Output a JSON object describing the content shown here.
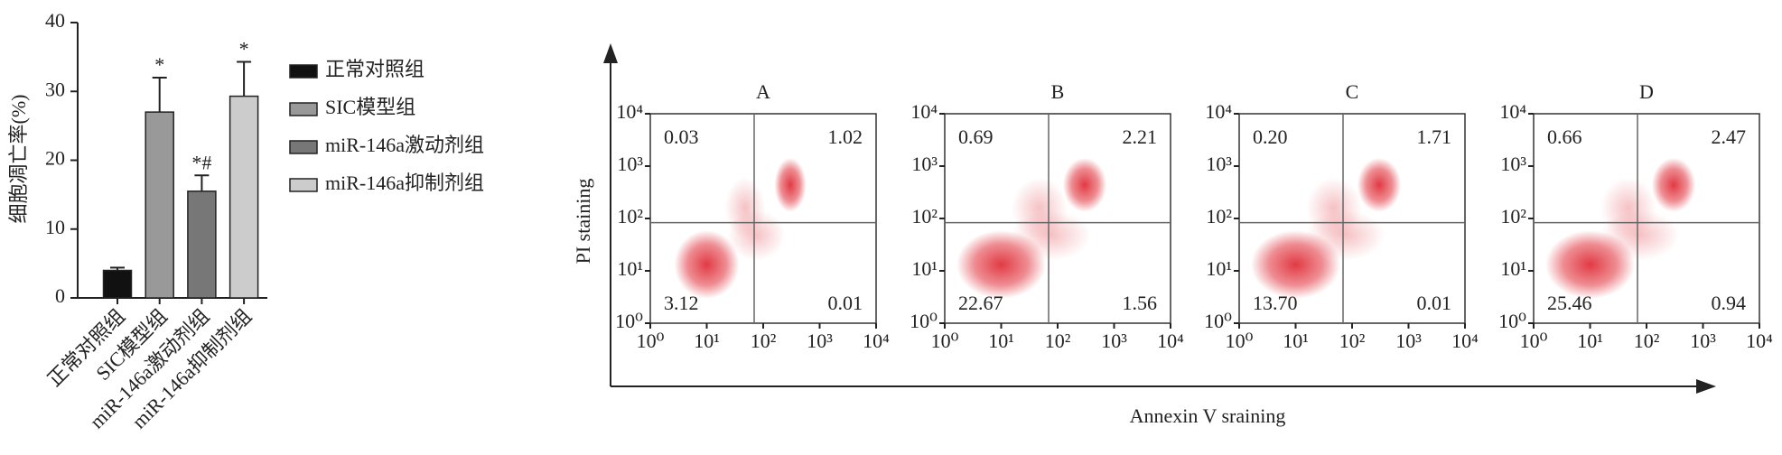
{
  "chart_data": [
    {
      "type": "bar",
      "ylabel": "细胞凋亡率(%)",
      "categories": [
        "正常对照组",
        "SIC模型组",
        "miR-146a激动剂组",
        "miR-146a抑制剂组"
      ],
      "values": [
        4,
        27,
        15.5,
        29.3
      ],
      "errors": [
        0.4,
        5,
        2.3,
        5
      ],
      "annotations": [
        "",
        "*",
        "*#",
        "*"
      ],
      "colors": [
        "#111111",
        "#999999",
        "#777777",
        "#cccccc"
      ],
      "ylim": [
        0,
        40
      ],
      "yticks": [
        0,
        10,
        20,
        30,
        40
      ],
      "legend": "right"
    },
    {
      "type": "quadrant",
      "xlabel": "Annexin V sraining",
      "ylabel": "PI staining",
      "log": true,
      "xlim": [
        1,
        10000
      ],
      "ylim": [
        1,
        10000
      ],
      "xticks": [
        {
          "value": 1,
          "label": "10⁰"
        },
        {
          "value": 10,
          "label": "10¹"
        },
        {
          "value": 100,
          "label": "10²"
        },
        {
          "value": 1000,
          "label": "10³"
        },
        {
          "value": 10000,
          "label": "10⁴"
        }
      ],
      "yticks": [
        {
          "value": 1,
          "label": "10⁰"
        },
        {
          "value": 10,
          "label": "10¹"
        },
        {
          "value": 100,
          "label": "10²"
        },
        {
          "value": 1000,
          "label": "10³"
        },
        {
          "value": 10000,
          "label": "10⁴"
        }
      ],
      "color": "#e0303a",
      "panels": [
        {
          "title": "A",
          "values": [
            0.03,
            1.02,
            3.12,
            0.01
          ],
          "value_labels": [
            "0.03",
            "1.02",
            "3.12",
            "0.01"
          ]
        },
        {
          "title": "B",
          "values": [
            0.69,
            2.21,
            22.67,
            1.56
          ],
          "value_labels": [
            "0.69",
            "2.21",
            "22.67",
            "1.56"
          ]
        },
        {
          "title": "C",
          "values": [
            0.2,
            1.71,
            13.7,
            0.01
          ],
          "value_labels": [
            "0.20",
            "1.71",
            "13.70",
            "0.01"
          ]
        },
        {
          "title": "D",
          "values": [
            0.66,
            2.47,
            25.46,
            0.94
          ],
          "value_labels": [
            "0.66",
            "2.47",
            "25.46",
            "0.94"
          ]
        }
      ]
    }
  ]
}
